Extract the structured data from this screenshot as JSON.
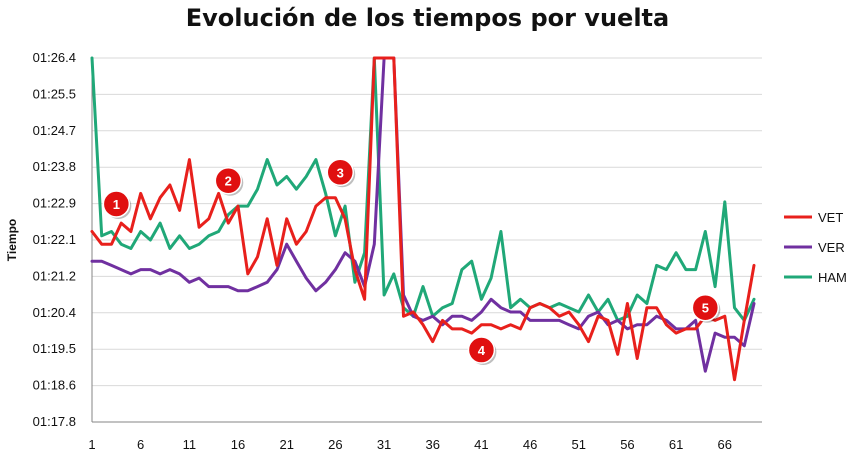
{
  "chart_data": {
    "type": "line",
    "title": "Evolución de los tiempos por vuelta",
    "xlabel": "",
    "ylabel": "Tiempo",
    "x": [
      1,
      2,
      3,
      4,
      5,
      6,
      7,
      8,
      9,
      10,
      11,
      12,
      13,
      14,
      15,
      16,
      17,
      18,
      19,
      20,
      21,
      22,
      23,
      24,
      25,
      26,
      27,
      28,
      29,
      30,
      31,
      32,
      33,
      34,
      35,
      36,
      37,
      38,
      39,
      40,
      41,
      42,
      43,
      44,
      45,
      46,
      47,
      48,
      49,
      50,
      51,
      52,
      53,
      54,
      55,
      56,
      57,
      58,
      59,
      60,
      61,
      62,
      63,
      64,
      65,
      66,
      67,
      68,
      69
    ],
    "x_tick_labels": [
      "1",
      "6",
      "11",
      "16",
      "21",
      "26",
      "31",
      "36",
      "41",
      "46",
      "51",
      "56",
      "61",
      "66"
    ],
    "x_tick_values": [
      1,
      6,
      11,
      16,
      21,
      26,
      31,
      36,
      41,
      46,
      51,
      56,
      61,
      66
    ],
    "y_tick_labels": [
      "01:17.8",
      "01:18.6",
      "01:19.5",
      "01:20.4",
      "01:21.2",
      "01:22.1",
      "01:22.9",
      "01:23.8",
      "01:24.7",
      "01:25.5",
      "01:26.4"
    ],
    "y_tick_values": [
      77.8,
      78.66,
      79.52,
      80.38,
      81.24,
      82.1,
      82.96,
      83.82,
      84.68,
      85.54,
      86.4
    ],
    "ylim": [
      77.8,
      86.4
    ],
    "xlim": [
      1,
      69
    ],
    "grid": "horizontal",
    "legend": "right",
    "series": [
      {
        "name": "VET",
        "color": "#e8201c",
        "values": [
          82.3,
          82.0,
          82.0,
          82.5,
          82.3,
          83.2,
          82.6,
          83.1,
          83.4,
          82.8,
          84.0,
          82.4,
          82.6,
          83.2,
          82.5,
          82.9,
          81.3,
          81.7,
          82.6,
          81.5,
          82.6,
          82.0,
          82.3,
          82.9,
          83.1,
          83.1,
          82.6,
          81.4,
          80.7,
          86.4,
          86.4,
          86.4,
          80.3,
          80.4,
          80.1,
          79.7,
          80.2,
          80.0,
          80.0,
          79.9,
          80.1,
          80.1,
          80.0,
          80.1,
          80.0,
          80.5,
          80.6,
          80.5,
          80.3,
          80.4,
          80.1,
          79.7,
          80.3,
          80.2,
          79.4,
          80.6,
          79.3,
          80.5,
          80.5,
          80.1,
          79.9,
          80.0,
          80.0,
          80.3,
          80.2,
          80.3,
          78.8,
          80.2,
          81.5
        ]
      },
      {
        "name": "VER",
        "color": "#7030a0",
        "values": [
          81.6,
          81.6,
          81.5,
          81.4,
          81.3,
          81.4,
          81.4,
          81.3,
          81.4,
          81.3,
          81.1,
          81.2,
          81.0,
          81.0,
          81.0,
          80.9,
          80.9,
          81.0,
          81.1,
          81.4,
          82.0,
          81.6,
          81.2,
          80.9,
          81.1,
          81.4,
          81.8,
          81.6,
          81.0,
          82.0,
          86.4,
          86.4,
          80.8,
          80.3,
          80.2,
          80.3,
          80.1,
          80.3,
          80.3,
          80.2,
          80.4,
          80.7,
          80.5,
          80.4,
          80.4,
          80.2,
          80.2,
          80.2,
          80.2,
          80.1,
          80.0,
          80.3,
          80.4,
          80.1,
          80.2,
          80.0,
          80.1,
          80.1,
          80.3,
          80.2,
          80.0,
          80.0,
          80.2,
          79.0,
          79.9,
          79.8,
          79.8,
          79.6,
          80.6
        ]
      },
      {
        "name": "HAM",
        "color": "#20a878",
        "values": [
          86.4,
          82.2,
          82.3,
          82.0,
          81.9,
          82.3,
          82.1,
          82.5,
          81.9,
          82.2,
          81.9,
          82.0,
          82.2,
          82.3,
          82.7,
          82.9,
          82.9,
          83.3,
          84.0,
          83.4,
          83.6,
          83.3,
          83.6,
          84.0,
          83.2,
          82.2,
          82.9,
          81.1,
          81.8,
          86.4,
          80.8,
          81.3,
          80.5,
          80.3,
          81.0,
          80.3,
          80.5,
          80.6,
          81.4,
          81.6,
          80.7,
          81.2,
          82.3,
          80.5,
          80.7,
          80.5,
          80.6,
          80.5,
          80.6,
          80.5,
          80.4,
          80.8,
          80.4,
          80.7,
          80.2,
          80.3,
          80.8,
          80.6,
          81.5,
          81.4,
          81.8,
          81.4,
          81.4,
          82.3,
          81.0,
          83.0,
          80.5,
          80.2,
          80.7
        ]
      }
    ],
    "annotations": [
      {
        "label": "1",
        "x": 3.5,
        "y": 82.95
      },
      {
        "label": "2",
        "x": 15,
        "y": 83.5
      },
      {
        "label": "3",
        "x": 26.5,
        "y": 83.7
      },
      {
        "label": "4",
        "x": 41,
        "y": 79.5
      },
      {
        "label": "5",
        "x": 64,
        "y": 80.5
      }
    ]
  },
  "colors": {
    "axis": "#868686",
    "grid": "#d9d9d9",
    "marker": "#e01010"
  }
}
